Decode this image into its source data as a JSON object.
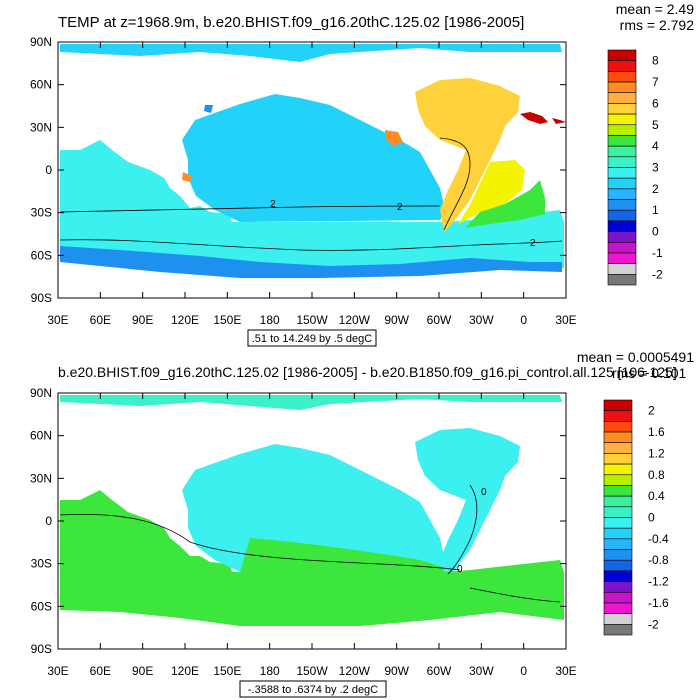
{
  "panels": [
    {
      "title": "TEMP at z=1968.9m, b.e20.BHIST.f09_g16.20thC.125.02 [1986-2005]",
      "stats": {
        "mean": "mean = 2.49",
        "rms": "rms = 2.792"
      },
      "contour_info": ".51 to 14.249 by .5 degC",
      "colorbar_labels": [
        "8",
        "7",
        "6",
        "5",
        "4",
        "3",
        "2",
        "1",
        "0",
        "-1",
        "-2"
      ],
      "colorbar_colors": [
        "#c80000",
        "#ee1010",
        "#ff4a10",
        "#ff8c1e",
        "#ffb040",
        "#ffd23c",
        "#f4f400",
        "#b4f000",
        "#3ce63c",
        "#3cf0a0",
        "#3cf0c8",
        "#3cf0f0",
        "#22d2f8",
        "#2ab4ff",
        "#1e90f0",
        "#1464e6",
        "#0000d2",
        "#7a14c8",
        "#c814c8",
        "#f014d2",
        "#d2d2d2",
        "#787878"
      ],
      "contour_labels": [
        "2",
        "2",
        "2"
      ]
    },
    {
      "title": "b.e20.BHIST.f09_g16.20thC.125.02 [1986-2005] - b.e20.B1850.f09_g16.pi_control.all.125 [106-125]",
      "stats": {
        "mean": "mean = 0.0005491",
        "rms": "rms = 0.101"
      },
      "contour_info": "-.3588 to .6374 by .2 degC",
      "colorbar_labels": [
        "2",
        "1.6",
        "1.2",
        "0.8",
        "0.4",
        "0",
        "-0.4",
        "-0.8",
        "-1.2",
        "-1.6",
        "-2"
      ],
      "colorbar_colors": [
        "#c80000",
        "#ee1010",
        "#ff4a10",
        "#ff8c1e",
        "#ffb040",
        "#ffd23c",
        "#f4f400",
        "#b4f000",
        "#3ce63c",
        "#3cf0a0",
        "#3cf0c8",
        "#3cf0f0",
        "#22d2f8",
        "#2ab4ff",
        "#1e90f0",
        "#1464e6",
        "#0000d2",
        "#7a14c8",
        "#c814c8",
        "#f014d2",
        "#d2d2d2",
        "#787878"
      ],
      "contour_labels": [
        "0",
        "0"
      ]
    }
  ],
  "axes": {
    "lat_labels": [
      "90N",
      "60N",
      "30N",
      "0",
      "30S",
      "60S",
      "90S"
    ],
    "lon_labels": [
      "30E",
      "60E",
      "90E",
      "120E",
      "150E",
      "180",
      "150W",
      "120W",
      "90W",
      "60W",
      "30W",
      "0",
      "30E"
    ]
  },
  "colors": {
    "top": {
      "pacific": "#22d2f8",
      "southern": "#3cf0f0",
      "atlantic": "#ffd23c",
      "sa_atl": "#f4f400",
      "so_green": "#3ce63c",
      "deep_band": "#1e90f0",
      "indian": "#3cf0f0",
      "arctic": "#22d2f8",
      "med": "#c80000",
      "land": "#ffffff"
    },
    "bottom": {
      "pacific": "#3cf0f0",
      "southern": "#3ce63c",
      "atlantic": "#3cf0f0",
      "indian": "#3ce63c",
      "arctic": "#3cf0c8",
      "green_band": "#3ce63c",
      "land": "#ffffff"
    }
  }
}
